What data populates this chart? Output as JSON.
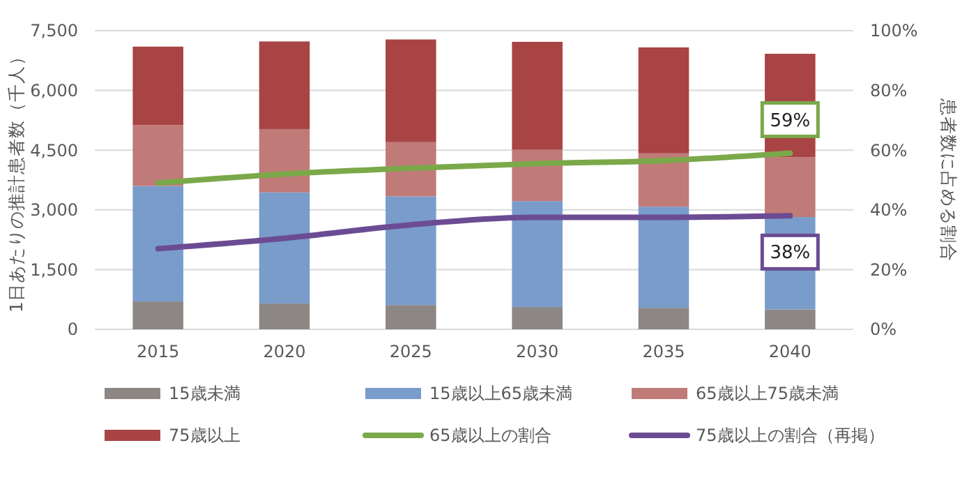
{
  "chart_data": {
    "type": "bar",
    "stacked": true,
    "categories": [
      "2015",
      "2020",
      "2025",
      "2030",
      "2035",
      "2040"
    ],
    "ylabel": "1日あたりの推計患者数（千人）",
    "y2label": "患者数に占める割合",
    "ylim": [
      0,
      7500
    ],
    "yticks": [
      {
        "value": 0,
        "label": "0"
      },
      {
        "value": 1500,
        "label": "1,500"
      },
      {
        "value": 3000,
        "label": "3,000"
      },
      {
        "value": 4500,
        "label": "4,500"
      },
      {
        "value": 6000,
        "label": "6,000"
      },
      {
        "value": 7500,
        "label": "7,500"
      }
    ],
    "y2lim": [
      0,
      100
    ],
    "y2ticks": [
      {
        "value": 0,
        "label": "0%"
      },
      {
        "value": 20,
        "label": "20%"
      },
      {
        "value": 40,
        "label": "40%"
      },
      {
        "value": 60,
        "label": "60%"
      },
      {
        "value": 80,
        "label": "80%"
      },
      {
        "value": 100,
        "label": "100%"
      }
    ],
    "grid": "y",
    "legend": "bottom",
    "series": [
      {
        "name": "15歳未満",
        "color": "#8c8784",
        "values": [
          700,
          650,
          610,
          560,
          540,
          500
        ]
      },
      {
        "name": "15歳以上65歳未満",
        "color": "#7a9ccb",
        "values": [
          2900,
          2790,
          2730,
          2660,
          2540,
          2320
        ]
      },
      {
        "name": "65歳以上75歳未満",
        "color": "#c07a78",
        "values": [
          1530,
          1590,
          1360,
          1290,
          1340,
          1500
        ]
      },
      {
        "name": "75歳以上",
        "color": "#a84444",
        "values": [
          1970,
          2200,
          2580,
          2710,
          2660,
          2600
        ]
      },
      {
        "name": "65歳以上の割合",
        "type": "line",
        "axis": "y2",
        "color": "#7ba94a",
        "values": [
          49,
          52,
          54,
          55.5,
          56.5,
          59
        ]
      },
      {
        "name": "75歳以上の割合（再掲）",
        "type": "line",
        "axis": "y2",
        "color": "#6b4c93",
        "values": [
          27,
          30.5,
          35,
          37.5,
          37.5,
          38
        ]
      }
    ],
    "annotations": [
      "59%",
      "38%"
    ]
  }
}
